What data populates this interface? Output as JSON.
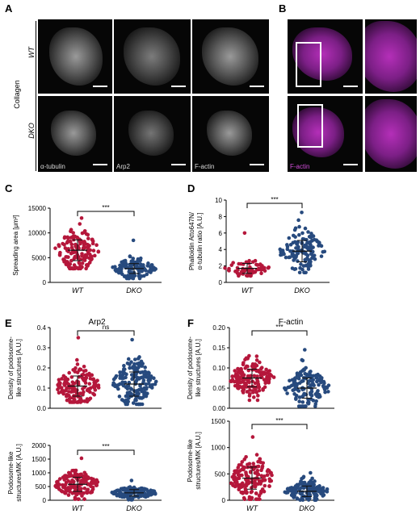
{
  "panels": {
    "A": "A",
    "B": "B",
    "C": "C",
    "D": "D",
    "E": "E",
    "F": "F"
  },
  "panel_a": {
    "side_label": "Collagen",
    "row_labels": [
      "WT",
      "DKO"
    ],
    "channel_labels": [
      "α-tubulin",
      "Arp2",
      "F-actin"
    ]
  },
  "panel_b": {
    "channel_label": "F-actin"
  },
  "colors": {
    "wt": "#b5173b",
    "dko": "#274a7e",
    "magenta": "#b42fb8"
  },
  "chart_data": [
    {
      "id": "C",
      "type": "scatter",
      "categories": [
        "WT",
        "DKO"
      ],
      "ylabel": "Spreading area [μm²]",
      "ylim": [
        0,
        15000
      ],
      "yticks": [
        0,
        5000,
        10000,
        15000
      ],
      "series": [
        {
          "category": "WT",
          "mean": 6500,
          "sd": 2100,
          "min": 2800,
          "max": 13000,
          "n": 150
        },
        {
          "category": "DKO",
          "mean": 2800,
          "sd": 1000,
          "min": 800,
          "max": 8500,
          "n": 120
        }
      ],
      "significance": "***"
    },
    {
      "id": "D",
      "type": "scatter",
      "categories": [
        "WT",
        "DKO"
      ],
      "ylabel_lines": [
        "Phalloidin Atto647N/",
        "α-tubulin ratio [A.U.]"
      ],
      "ylim": [
        0,
        10
      ],
      "yticks": [
        0,
        2,
        4,
        6,
        8,
        10
      ],
      "series": [
        {
          "category": "WT",
          "mean": 1.7,
          "sd": 0.6,
          "min": 0.8,
          "max": 6.0,
          "n": 70
        },
        {
          "category": "DKO",
          "mean": 3.8,
          "sd": 1.3,
          "min": 1.2,
          "max": 8.5,
          "n": 130
        }
      ],
      "significance": "***"
    },
    {
      "id": "E-top",
      "type": "scatter",
      "title": "Arp2",
      "categories": [
        "WT",
        "DKO"
      ],
      "ylabel_lines": [
        "Density of podosome-",
        "like structures [A.U.]"
      ],
      "ylim": [
        0,
        0.4
      ],
      "yticks": [
        0.0,
        0.1,
        0.2,
        0.3,
        0.4
      ],
      "series": [
        {
          "category": "WT",
          "mean": 0.11,
          "sd": 0.05,
          "min": 0.03,
          "max": 0.35,
          "n": 150
        },
        {
          "category": "DKO",
          "mean": 0.12,
          "sd": 0.06,
          "min": 0.02,
          "max": 0.34,
          "n": 170
        }
      ],
      "significance": "ns"
    },
    {
      "id": "E-bottom",
      "type": "scatter",
      "categories": [
        "WT",
        "DKO"
      ],
      "ylabel_lines": [
        "Podosome-like",
        "structures/MK [A.U.]"
      ],
      "ylim": [
        0,
        2000
      ],
      "yticks": [
        0,
        500,
        1000,
        1500,
        2000
      ],
      "series": [
        {
          "category": "WT",
          "mean": 580,
          "sd": 260,
          "min": 40,
          "max": 1530,
          "n": 150
        },
        {
          "category": "DKO",
          "mean": 270,
          "sd": 120,
          "min": 20,
          "max": 720,
          "n": 130
        }
      ],
      "significance": "***"
    },
    {
      "id": "F-top",
      "type": "scatter",
      "title": "F-actin",
      "categories": [
        "WT",
        "DKO"
      ],
      "ylabel_lines": [
        "Density of podosome-",
        "like structures [A.U.]"
      ],
      "ylim": [
        0,
        0.2
      ],
      "yticks": [
        0.0,
        0.05,
        0.1,
        0.15,
        0.2
      ],
      "series": [
        {
          "category": "WT",
          "mean": 0.075,
          "sd": 0.022,
          "min": 0.02,
          "max": 0.13,
          "n": 160
        },
        {
          "category": "DKO",
          "mean": 0.05,
          "sd": 0.025,
          "min": 0.005,
          "max": 0.145,
          "n": 140
        }
      ],
      "significance": "***"
    },
    {
      "id": "F-bottom",
      "type": "scatter",
      "categories": [
        "WT",
        "DKO"
      ],
      "ylabel_lines": [
        "Podosome-like",
        "structures/MK [A.U.]"
      ],
      "ylim": [
        0,
        1500
      ],
      "yticks": [
        0,
        500,
        1000,
        1500
      ],
      "series": [
        {
          "category": "WT",
          "mean": 420,
          "sd": 210,
          "min": 20,
          "max": 1200,
          "n": 160
        },
        {
          "category": "DKO",
          "mean": 170,
          "sd": 100,
          "min": 5,
          "max": 520,
          "n": 130
        }
      ],
      "significance": "***"
    }
  ]
}
